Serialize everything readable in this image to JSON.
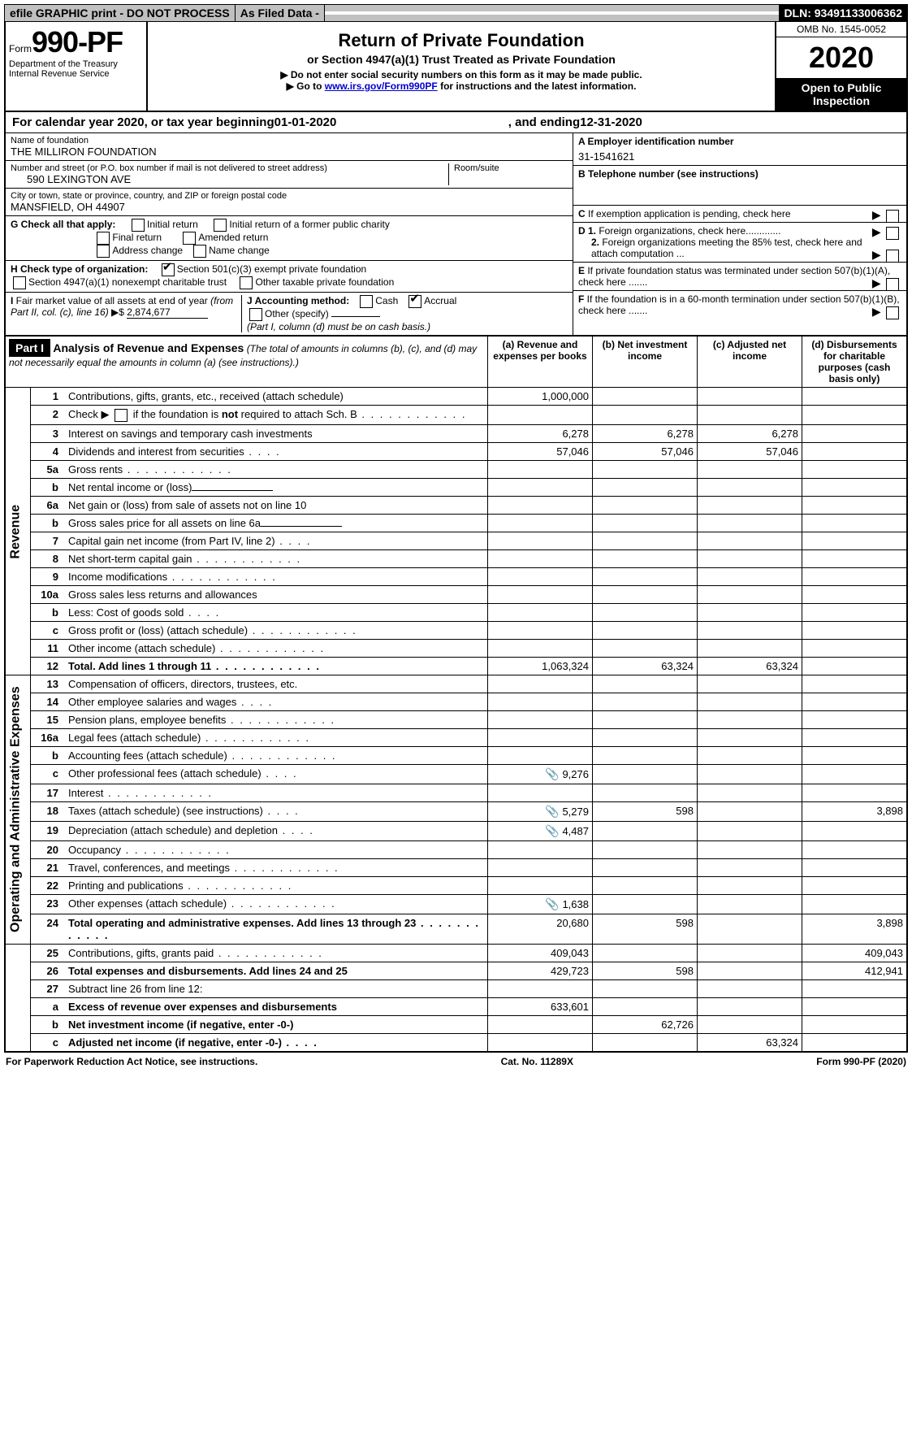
{
  "top_bar": {
    "efile": "efile GRAPHIC print - DO NOT PROCESS",
    "asfiled": "As Filed Data -",
    "dln_label": "DLN:",
    "dln": "93491133006362"
  },
  "header": {
    "form_prefix": "Form",
    "form_number": "990-PF",
    "dept": "Department of the Treasury",
    "irs": "Internal Revenue Service",
    "title": "Return of Private Foundation",
    "subtitle": "or Section 4947(a)(1) Trust Treated as Private Foundation",
    "note1": "▶ Do not enter social security numbers on this form as it may be made public.",
    "note2_pre": "▶ Go to ",
    "note2_link": "www.irs.gov/Form990PF",
    "note2_post": " for instructions and the latest information.",
    "omb": "OMB No. 1545-0052",
    "year": "2020",
    "inspect": "Open to Public Inspection"
  },
  "cal_year": {
    "pre": "For calendar year 2020, or tax year beginning ",
    "begin": "01-01-2020",
    "mid": " , and ending ",
    "end": "12-31-2020"
  },
  "ident": {
    "name_label": "Name of foundation",
    "name": "THE MILLIRON FOUNDATION",
    "addr_label": "Number and street (or P.O. box number if mail is not delivered to street address)",
    "addr": "590 LEXINGTON AVE",
    "room_label": "Room/suite",
    "room": "",
    "city_label": "City or town, state or province, country, and ZIP or foreign postal code",
    "city": "MANSFIELD, OH  44907",
    "a_label": "A Employer identification number",
    "ein": "31-1541621",
    "b_label": "B Telephone number (see instructions)",
    "phone": "",
    "c_label": "C If exemption application is pending, check here",
    "d1": "D 1. Foreign organizations, check here",
    "d2": "2. Foreign organizations meeting the 85% test, check here and attach computation ...",
    "e": "E If private foundation status was terminated under section 507(b)(1)(A), check here .......",
    "f": "F If the foundation is in a 60-month termination under section 507(b)(1)(B), check here ......."
  },
  "checks_g": {
    "label": "G Check all that apply:",
    "initial": "Initial return",
    "initial_former": "Initial return of a former public charity",
    "final": "Final return",
    "amended": "Amended return",
    "addr_change": "Address change",
    "name_change": "Name change"
  },
  "checks_h": {
    "label": "H Check type of organization:",
    "s501": "Section 501(c)(3) exempt private foundation",
    "s4947": "Section 4947(a)(1) nonexempt charitable trust",
    "other_tax": "Other taxable private foundation"
  },
  "checks_i": {
    "label": "I Fair market value of all assets at end of year (from Part II, col. (c), line 16) ▶$ ",
    "value": "2,874,677"
  },
  "checks_j": {
    "label": "J Accounting method:",
    "cash": "Cash",
    "accrual": "Accrual",
    "other": "Other (specify)",
    "note": "(Part I, column (d) must be on cash basis.)"
  },
  "part1": {
    "label": "Part I",
    "title": "Analysis of Revenue and Expenses",
    "title_note": " (The total of amounts in columns (b), (c), and (d) may not necessarily equal the amounts in column (a) (see instructions).)",
    "col_a": "(a) Revenue and expenses per books",
    "col_b": "(b) Net investment income",
    "col_c": "(c) Adjusted net income",
    "col_d": "(d) Disbursements for charitable purposes (cash basis only)"
  },
  "side_labels": {
    "revenue": "Revenue",
    "expenses": "Operating and Administrative Expenses"
  },
  "rows": [
    {
      "n": "1",
      "d": "Contributions, gifts, grants, etc., received (attach schedule)",
      "a": "1,000,000",
      "b": "",
      "c": "",
      "dd": "",
      "icon": false
    },
    {
      "n": "2",
      "d": "Check ▶ ☐ if the foundation is not required to attach Sch. B",
      "a": "",
      "b": "",
      "c": "",
      "dd": "",
      "icon": false,
      "dots": true
    },
    {
      "n": "3",
      "d": "Interest on savings and temporary cash investments",
      "a": "6,278",
      "b": "6,278",
      "c": "6,278",
      "dd": "",
      "icon": false
    },
    {
      "n": "4",
      "d": "Dividends and interest from securities",
      "a": "57,046",
      "b": "57,046",
      "c": "57,046",
      "dd": "",
      "icon": false,
      "dots_short": true
    },
    {
      "n": "5a",
      "d": "Gross rents",
      "a": "",
      "b": "",
      "c": "",
      "dd": "",
      "icon": false,
      "dots": true
    },
    {
      "n": "b",
      "d": "Net rental income or (loss)",
      "a": "",
      "b": "",
      "c": "",
      "dd": "",
      "icon": false,
      "underline": true
    },
    {
      "n": "6a",
      "d": "Net gain or (loss) from sale of assets not on line 10",
      "a": "",
      "b": "",
      "c": "",
      "dd": "",
      "icon": false
    },
    {
      "n": "b",
      "d": "Gross sales price for all assets on line 6a",
      "a": "",
      "b": "",
      "c": "",
      "dd": "",
      "icon": false,
      "underline": true
    },
    {
      "n": "7",
      "d": "Capital gain net income (from Part IV, line 2)",
      "a": "",
      "b": "",
      "c": "",
      "dd": "",
      "icon": false,
      "dots_short": true
    },
    {
      "n": "8",
      "d": "Net short-term capital gain",
      "a": "",
      "b": "",
      "c": "",
      "dd": "",
      "icon": false,
      "dots": true
    },
    {
      "n": "9",
      "d": "Income modifications",
      "a": "",
      "b": "",
      "c": "",
      "dd": "",
      "icon": false,
      "dots": true
    },
    {
      "n": "10a",
      "d": "Gross sales less returns and allowances",
      "a": "",
      "b": "",
      "c": "",
      "dd": "",
      "icon": false,
      "box": true
    },
    {
      "n": "b",
      "d": "Less: Cost of goods sold",
      "a": "",
      "b": "",
      "c": "",
      "dd": "",
      "icon": false,
      "dots_short": true,
      "box": true
    },
    {
      "n": "c",
      "d": "Gross profit or (loss) (attach schedule)",
      "a": "",
      "b": "",
      "c": "",
      "dd": "",
      "icon": false,
      "dots": true
    },
    {
      "n": "11",
      "d": "Other income (attach schedule)",
      "a": "",
      "b": "",
      "c": "",
      "dd": "",
      "icon": false,
      "dots": true
    },
    {
      "n": "12",
      "d": "Total. Add lines 1 through 11",
      "a": "1,063,324",
      "b": "63,324",
      "c": "63,324",
      "dd": "",
      "icon": false,
      "bold": true,
      "dots": true
    },
    {
      "n": "13",
      "d": "Compensation of officers, directors, trustees, etc.",
      "a": "",
      "b": "",
      "c": "",
      "dd": "",
      "icon": false
    },
    {
      "n": "14",
      "d": "Other employee salaries and wages",
      "a": "",
      "b": "",
      "c": "",
      "dd": "",
      "icon": false,
      "dots_short": true
    },
    {
      "n": "15",
      "d": "Pension plans, employee benefits",
      "a": "",
      "b": "",
      "c": "",
      "dd": "",
      "icon": false,
      "dots": true
    },
    {
      "n": "16a",
      "d": "Legal fees (attach schedule)",
      "a": "",
      "b": "",
      "c": "",
      "dd": "",
      "icon": false,
      "dots": true
    },
    {
      "n": "b",
      "d": "Accounting fees (attach schedule)",
      "a": "",
      "b": "",
      "c": "",
      "dd": "",
      "icon": false,
      "dots": true
    },
    {
      "n": "c",
      "d": "Other professional fees (attach schedule)",
      "a": "9,276",
      "b": "",
      "c": "",
      "dd": "",
      "icon": true,
      "dots_short": true
    },
    {
      "n": "17",
      "d": "Interest",
      "a": "",
      "b": "",
      "c": "",
      "dd": "",
      "icon": false,
      "dots": true
    },
    {
      "n": "18",
      "d": "Taxes (attach schedule) (see instructions)",
      "a": "5,279",
      "b": "598",
      "c": "",
      "dd": "3,898",
      "icon": true,
      "dots_short": true
    },
    {
      "n": "19",
      "d": "Depreciation (attach schedule) and depletion",
      "a": "4,487",
      "b": "",
      "c": "",
      "dd": "",
      "icon": true,
      "dots_short": true
    },
    {
      "n": "20",
      "d": "Occupancy",
      "a": "",
      "b": "",
      "c": "",
      "dd": "",
      "icon": false,
      "dots": true
    },
    {
      "n": "21",
      "d": "Travel, conferences, and meetings",
      "a": "",
      "b": "",
      "c": "",
      "dd": "",
      "icon": false,
      "dots": true
    },
    {
      "n": "22",
      "d": "Printing and publications",
      "a": "",
      "b": "",
      "c": "",
      "dd": "",
      "icon": false,
      "dots": true
    },
    {
      "n": "23",
      "d": "Other expenses (attach schedule)",
      "a": "1,638",
      "b": "",
      "c": "",
      "dd": "",
      "icon": true,
      "dots": true
    },
    {
      "n": "24",
      "d": "Total operating and administrative expenses. Add lines 13 through 23",
      "a": "20,680",
      "b": "598",
      "c": "",
      "dd": "3,898",
      "icon": false,
      "bold": true,
      "dots": true
    },
    {
      "n": "25",
      "d": "Contributions, gifts, grants paid",
      "a": "409,043",
      "b": "",
      "c": "",
      "dd": "409,043",
      "icon": false,
      "dots": true
    },
    {
      "n": "26",
      "d": "Total expenses and disbursements. Add lines 24 and 25",
      "a": "429,723",
      "b": "598",
      "c": "",
      "dd": "412,941",
      "icon": false,
      "bold": true
    },
    {
      "n": "27",
      "d": "Subtract line 26 from line 12:",
      "a": "",
      "b": "",
      "c": "",
      "dd": "",
      "icon": false
    },
    {
      "n": "a",
      "d": "Excess of revenue over expenses and disbursements",
      "a": "633,601",
      "b": "",
      "c": "",
      "dd": "",
      "icon": false,
      "bold": true
    },
    {
      "n": "b",
      "d": "Net investment income (if negative, enter -0-)",
      "a": "",
      "b": "62,726",
      "c": "",
      "dd": "",
      "icon": false,
      "bold": true
    },
    {
      "n": "c",
      "d": "Adjusted net income (if negative, enter -0-)",
      "a": "",
      "b": "",
      "c": "63,324",
      "dd": "",
      "icon": false,
      "bold": true,
      "dots_short": true
    }
  ],
  "footer": {
    "left": "For Paperwork Reduction Act Notice, see instructions.",
    "mid": "Cat. No. 11289X",
    "right": "Form 990-PF (2020)"
  },
  "colors": {
    "border": "#000000",
    "shaded": "#c0c0c0",
    "link": "#0000cc"
  }
}
